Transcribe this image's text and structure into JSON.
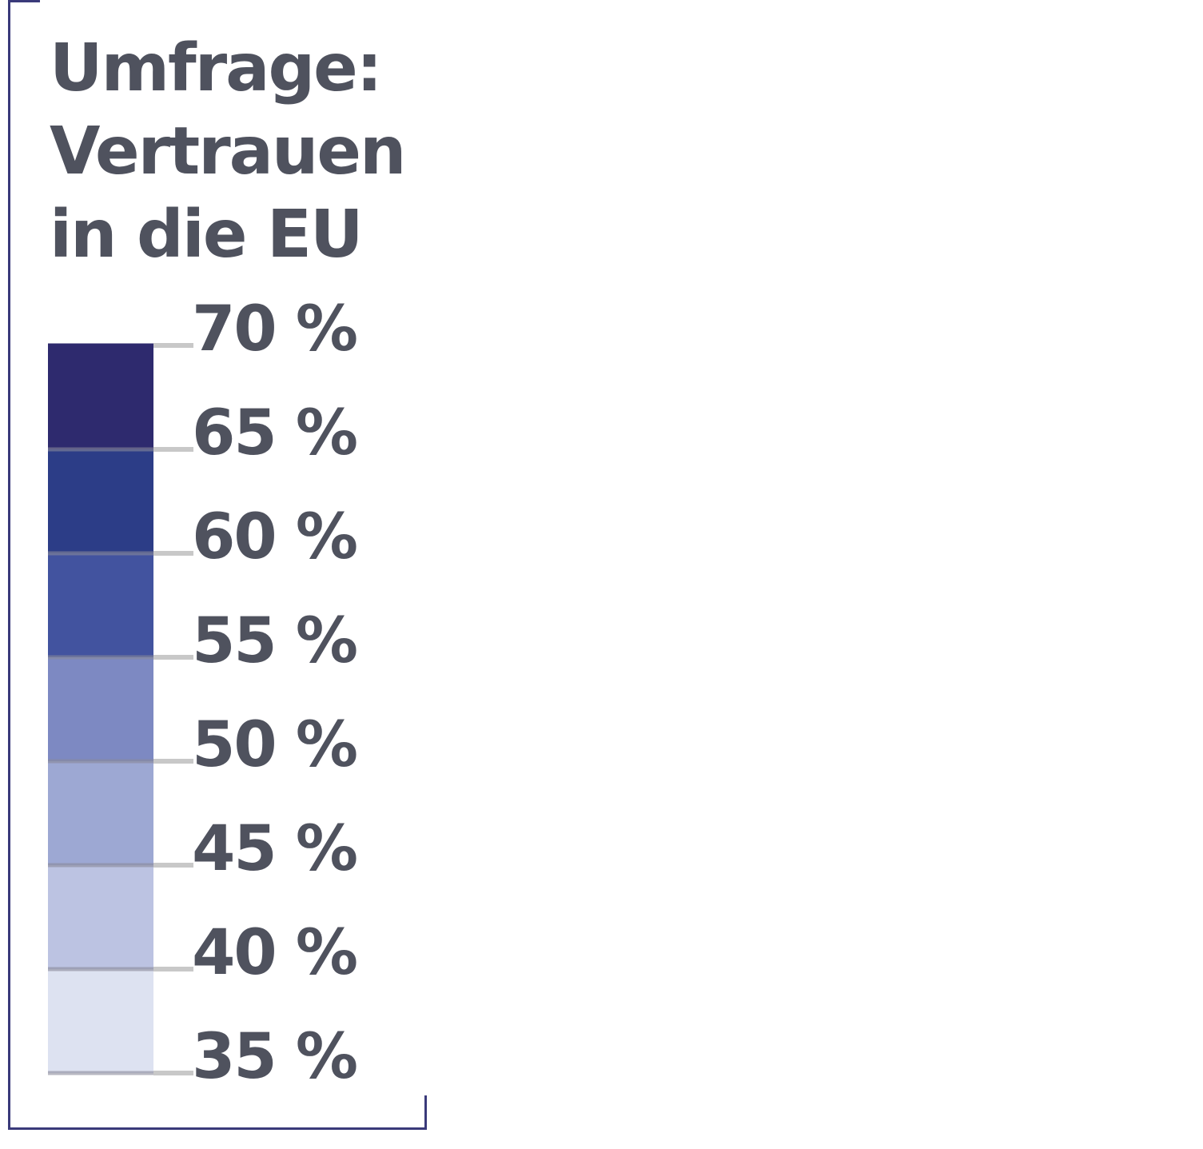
{
  "title_lines": [
    "Umfrage:",
    "Vertrauen",
    "in die EU"
  ],
  "colors": {
    "frame": "#3a3a7a",
    "text": "#4f525e",
    "tick": "#c8c8c8",
    "separator": "#888899"
  },
  "chart_data": {
    "type": "color_legend",
    "title": "Umfrage: Vertrauen in die EU",
    "unit": "%",
    "ticks": [
      {
        "value": 70,
        "label": "70 %"
      },
      {
        "value": 65,
        "label": "65 %"
      },
      {
        "value": 60,
        "label": "60 %"
      },
      {
        "value": 55,
        "label": "55 %"
      },
      {
        "value": 50,
        "label": "50 %"
      },
      {
        "value": 45,
        "label": "45 %"
      },
      {
        "value": 40,
        "label": "40 %"
      },
      {
        "value": 35,
        "label": "35 %"
      }
    ],
    "bins": [
      {
        "from": 65,
        "to": 70,
        "color": "#2e2a6e"
      },
      {
        "from": 60,
        "to": 65,
        "color": "#2c3d87"
      },
      {
        "from": 55,
        "to": 60,
        "color": "#42539f"
      },
      {
        "from": 50,
        "to": 55,
        "color": "#7d89c2"
      },
      {
        "from": 45,
        "to": 50,
        "color": "#9da8d3"
      },
      {
        "from": 40,
        "to": 45,
        "color": "#bcc3e2"
      },
      {
        "from": 35,
        "to": 40,
        "color": "#dde2f1"
      }
    ]
  }
}
